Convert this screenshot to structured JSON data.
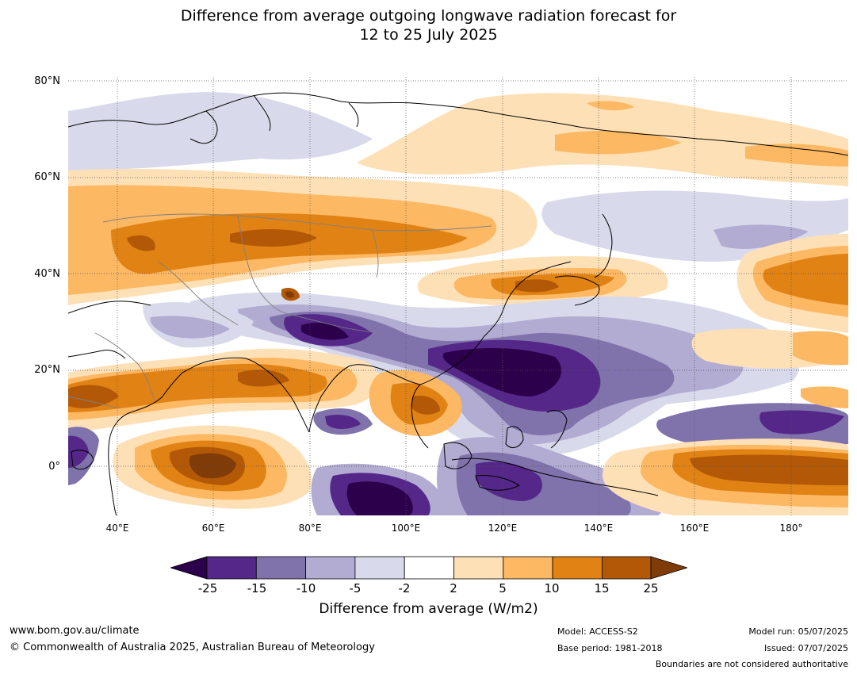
{
  "title_line1": "Difference from average outgoing longwave radiation forecast for",
  "title_line2": "12 to 25 July 2025",
  "map": {
    "lat_labels": [
      "80°N",
      "60°N",
      "40°N",
      "20°N",
      "0°"
    ],
    "lon_labels": [
      "40°E",
      "60°E",
      "80°E",
      "100°E",
      "120°E",
      "140°E",
      "160°E",
      "180°"
    ]
  },
  "colorbar": {
    "ticks": [
      "-25",
      "-15",
      "-10",
      "-5",
      "-2",
      "2",
      "5",
      "10",
      "15",
      "25"
    ],
    "colors": [
      "#2d004b",
      "#542788",
      "#8073ac",
      "#b2abd2",
      "#d8daeb",
      "#ffffff",
      "#fee0b6",
      "#fdb863",
      "#e08214",
      "#b35806",
      "#7f3b08"
    ],
    "label": "Difference from average (W/m2)"
  },
  "footer": {
    "website": "www.bom.gov.au/climate",
    "copyright": "© Commonwealth of Australia 2025, Australian Bureau of Meteorology",
    "model": "Model: ACCESS-S2",
    "base_period": "Base period: 1981-2018",
    "model_run": "Model run: 05/07/2025",
    "issued": "Issued: 07/07/2025",
    "disclaimer": "Boundaries are not considered authoritative"
  }
}
